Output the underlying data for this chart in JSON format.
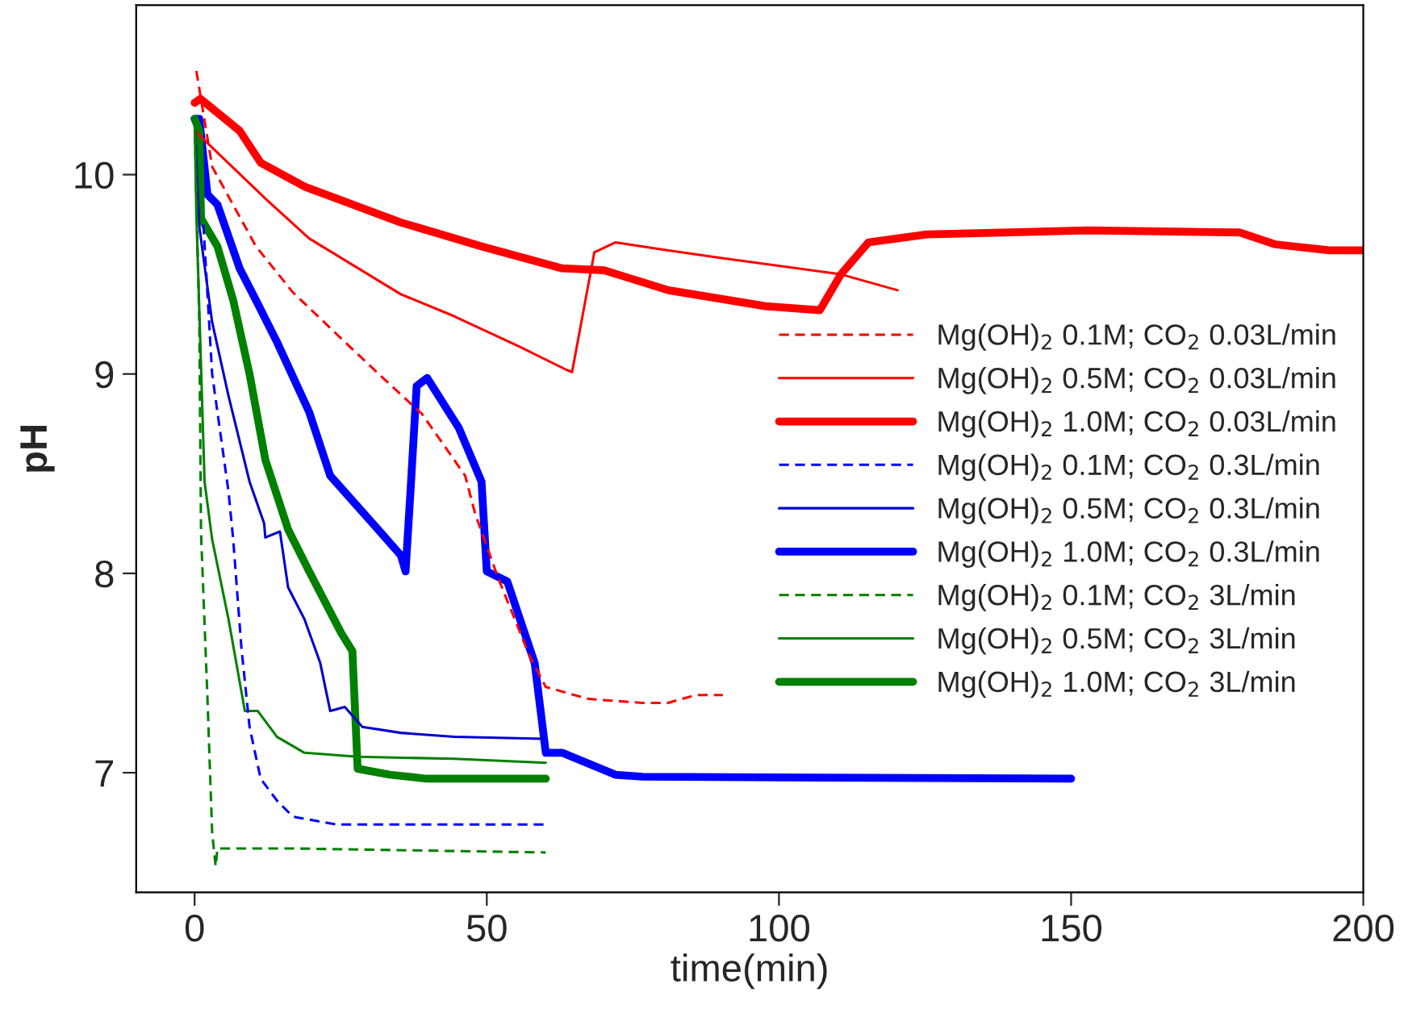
{
  "chart_data": {
    "type": "line",
    "xlabel": "time(min)",
    "ylabel": "pH",
    "xlim": [
      -10,
      200
    ],
    "ylim": [
      6.4,
      10.85
    ],
    "xticks": [
      0,
      50,
      100,
      150,
      200
    ],
    "yticks": [
      7,
      8,
      9,
      10
    ],
    "grid": false,
    "legend": "right",
    "marker": "none",
    "series": [
      {
        "name": "Mg(OH)$_{2}$ 0.1M; CO$_{2}$ 0.03L/min",
        "color": "#ff0000",
        "line_style": "dashed",
        "x": [
          0.3,
          3,
          10.5,
          16.8,
          24.3,
          31.5,
          38.9,
          46.3,
          48,
          51.9,
          57.4,
          60.1,
          67.4,
          76.7,
          81,
          85.8,
          90.4
        ],
        "values": [
          10.52,
          10.04,
          9.64,
          9.41,
          9.2,
          9.0,
          8.8,
          8.49,
          8.3,
          7.98,
          7.58,
          7.43,
          7.37,
          7.35,
          7.35,
          7.39,
          7.39
        ]
      },
      {
        "name": "Mg(OH)$_{2}$ 0.5M; CO$_{2}$ 0.03L/min",
        "color": "#ff0000",
        "line_style": "solid",
        "x": [
          0,
          12.1,
          19.6,
          35.3,
          44.4,
          55.4,
          63.7,
          64.6,
          68.4,
          72,
          81.1,
          90.5,
          110.6,
          120.3
        ],
        "values": [
          10.22,
          9.88,
          9.68,
          9.4,
          9.29,
          9.14,
          9.02,
          9.01,
          9.61,
          9.66,
          9.62,
          9.58,
          9.5,
          9.42
        ]
      },
      {
        "name": "Mg(OH)$_{2}$ 1.0M; CO$_{2}$ 0.03L/min",
        "color": "#ff0000",
        "line_style": "solid",
        "x": [
          0,
          1,
          7.7,
          11.3,
          18.8,
          35.3,
          49.1,
          62.9,
          70.1,
          81.1,
          97.7,
          107,
          110.6,
          115.3,
          125.3,
          152.8,
          178.8,
          185,
          194.2,
          200
        ],
        "values": [
          10.36,
          10.38,
          10.22,
          10.06,
          9.94,
          9.76,
          9.64,
          9.53,
          9.52,
          9.42,
          9.34,
          9.32,
          9.5,
          9.66,
          9.7,
          9.72,
          9.71,
          9.65,
          9.62,
          9.62
        ]
      },
      {
        "name": "Mg(OH)$_{2}$ 0.1M; CO$_{2}$ 0.3L/min",
        "color": "#0000ff",
        "line_style": "dashed",
        "x": [
          1.5,
          3,
          5.8,
          6.6,
          8,
          9.4,
          11.3,
          14.1,
          16.8,
          24.3,
          60.1
        ],
        "values": [
          9.75,
          9.0,
          8.41,
          8.17,
          7.63,
          7.23,
          6.97,
          6.86,
          6.78,
          6.74,
          6.74
        ]
      },
      {
        "name": "Mg(OH)$_{2}$ 0.5M; CO$_{2}$ 0.3L/min",
        "color": "#0000cc",
        "line_style": "solid",
        "x": [
          0,
          0.8,
          3,
          5.8,
          9.4,
          11.9,
          12.1,
          14.6,
          16,
          18.8,
          21.5,
          23.2,
          25.7,
          28.7,
          35.3,
          44.4,
          59.6
        ],
        "values": [
          10.28,
          9.74,
          9.26,
          8.89,
          8.46,
          8.25,
          8.18,
          8.21,
          7.93,
          7.77,
          7.55,
          7.31,
          7.33,
          7.23,
          7.2,
          7.18,
          7.17
        ]
      },
      {
        "name": "Mg(OH)$_{2}$ 1.0M; CO$_{2}$ 0.3L/min",
        "color": "#0000ff",
        "line_style": "solid",
        "x": [
          0,
          0.8,
          2.2,
          3.9,
          7.7,
          10.5,
          14.1,
          19.6,
          23.2,
          31.4,
          35.3,
          36.1,
          37,
          38,
          39.8,
          45.2,
          49.1,
          50,
          53.5,
          58.2,
          60.1,
          62.9,
          72,
          76.7,
          150
        ],
        "values": [
          10.28,
          10.28,
          9.9,
          9.85,
          9.53,
          9.37,
          9.16,
          8.81,
          8.49,
          8.22,
          8.09,
          8.01,
          8.44,
          8.94,
          8.98,
          8.73,
          8.46,
          8.01,
          7.96,
          7.55,
          7.1,
          7.1,
          6.99,
          6.98,
          6.97
        ]
      },
      {
        "name": "Mg(OH)$_{2}$ 0.1M; CO$_{2}$ 3L/min",
        "color": "#008000",
        "line_style": "dashed",
        "x": [
          0,
          0.8,
          1.1,
          2.2,
          3,
          3.6,
          3.9,
          16.8,
          60.1
        ],
        "values": [
          10.28,
          9.26,
          8.2,
          7.37,
          6.7,
          6.53,
          6.62,
          6.62,
          6.6
        ]
      },
      {
        "name": "Mg(OH)$_{2}$ 0.5M; CO$_{2}$ 3L/min",
        "color": "#008000",
        "line_style": "solid",
        "x": [
          0,
          0.3,
          1.7,
          3,
          5.8,
          8.6,
          10.8,
          14.1,
          18.8,
          27.9,
          44.4,
          60.1
        ],
        "values": [
          10.28,
          9.8,
          8.46,
          8.17,
          7.77,
          7.31,
          7.31,
          7.18,
          7.1,
          7.08,
          7.07,
          7.05
        ]
      },
      {
        "name": "Mg(OH)$_{2}$ 1.0M; CO$_{2}$ 3L/min",
        "color": "#008000",
        "line_style": "solid",
        "x": [
          0,
          0.8,
          1.1,
          3.9,
          6.6,
          9.4,
          12.1,
          16,
          19.6,
          25.1,
          27,
          27.9,
          33.4,
          39.7,
          60.1
        ],
        "values": [
          10.28,
          10.22,
          9.78,
          9.64,
          9.37,
          9.0,
          8.57,
          8.22,
          8.01,
          7.7,
          7.61,
          7.02,
          6.99,
          6.97,
          6.97
        ]
      }
    ]
  }
}
